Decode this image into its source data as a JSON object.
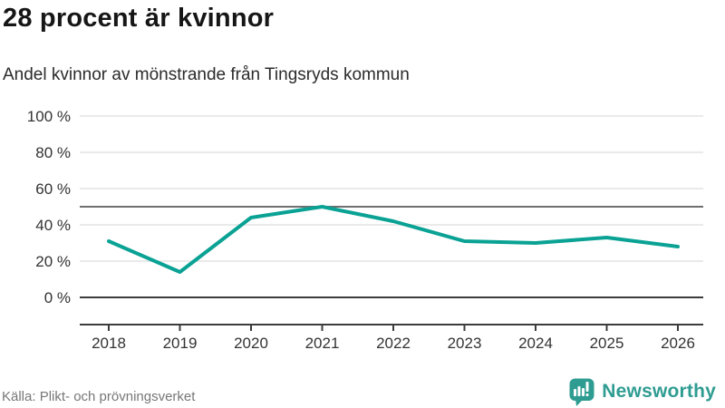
{
  "header": {
    "title": "28 procent är kvinnor",
    "subtitle": "Andel kvinnor av mönstrande från Tingsryds kommun"
  },
  "chart_data": {
    "type": "line",
    "x": [
      2018,
      2019,
      2020,
      2021,
      2022,
      2023,
      2024,
      2025,
      2026
    ],
    "series": [
      {
        "name": "Andel kvinnor av mönstrande",
        "values": [
          31,
          14,
          44,
          50,
          42,
          31,
          30,
          33,
          28
        ]
      }
    ],
    "unit": "%",
    "ylim": [
      0,
      100
    ],
    "yticks": [
      {
        "value": 0,
        "label": "0 %"
      },
      {
        "value": 20,
        "label": "20 %"
      },
      {
        "value": 40,
        "label": "40 %"
      },
      {
        "value": 60,
        "label": "60 %"
      },
      {
        "value": 80,
        "label": "80 %"
      },
      {
        "value": 100,
        "label": "100 %"
      }
    ],
    "reference_line_value": 50,
    "grid": true,
    "legend_position": "none",
    "colors": {
      "line": "#0aa294",
      "grid": "#e3e3e3",
      "reference_line": "#6f6f6f",
      "axis": "#3c3c3c",
      "tick_label": "#333333"
    }
  },
  "footer": {
    "source": "Källa: Plikt- och prövningsverket",
    "brand": "Newsworthy",
    "brand_color": "#2f9c92"
  }
}
